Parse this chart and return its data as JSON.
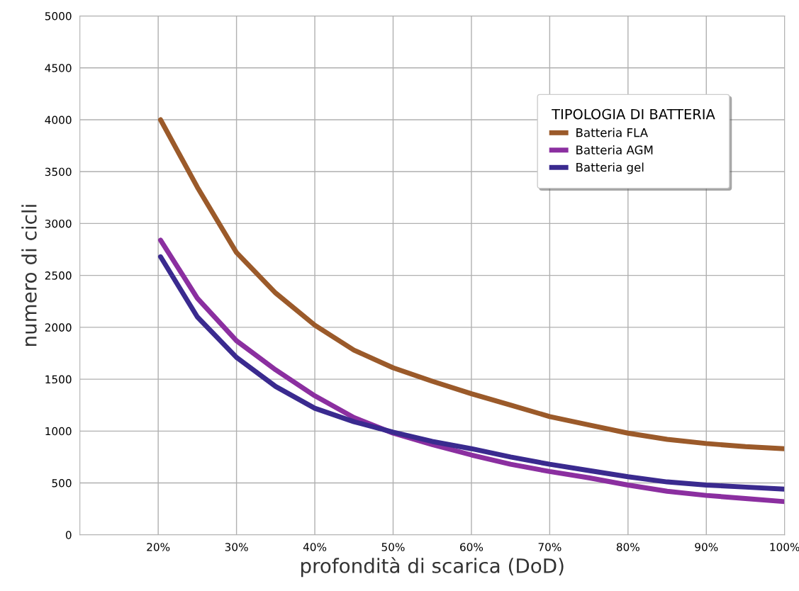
{
  "chart_data": {
    "type": "line",
    "xlabel": "profondità di scarica (DoD)",
    "ylabel": "numero di cicli",
    "legend_title": "TIPOLOGIA DI BATTERIA",
    "legend": "top right",
    "grid": true,
    "line_style": "solid",
    "marker": "none",
    "xlim": [
      10,
      100
    ],
    "ylim": [
      0,
      5000
    ],
    "xticks": [
      {
        "value": 20,
        "label": "20%"
      },
      {
        "value": 30,
        "label": "30%"
      },
      {
        "value": 40,
        "label": "40%"
      },
      {
        "value": 50,
        "label": "50%"
      },
      {
        "value": 60,
        "label": "60%"
      },
      {
        "value": 70,
        "label": "70%"
      },
      {
        "value": 80,
        "label": "80%"
      },
      {
        "value": 90,
        "label": "90%"
      },
      {
        "value": 100,
        "label": "100%"
      }
    ],
    "yticks": [
      0,
      500,
      1000,
      1500,
      2000,
      2500,
      3000,
      3500,
      4000,
      4500,
      5000
    ],
    "x": [
      20.3,
      25,
      30,
      35,
      40,
      45,
      50,
      55,
      60,
      65,
      70,
      75,
      80,
      85,
      90,
      95,
      100
    ],
    "series": [
      {
        "name": "Batteria FLA",
        "color": "#9b5a2a",
        "values": [
          4000,
          3350,
          2720,
          2330,
          2020,
          1780,
          1610,
          1480,
          1360,
          1250,
          1140,
          1060,
          980,
          920,
          880,
          850,
          830
        ]
      },
      {
        "name": "Batteria AGM",
        "color": "#8b2fa0",
        "values": [
          2840,
          2280,
          1870,
          1590,
          1340,
          1130,
          980,
          870,
          770,
          680,
          610,
          550,
          480,
          420,
          380,
          350,
          320
        ]
      },
      {
        "name": "Batteria gel",
        "color": "#3a2a8f",
        "values": [
          2680,
          2100,
          1710,
          1430,
          1220,
          1090,
          990,
          900,
          830,
          750,
          680,
          620,
          560,
          510,
          480,
          460,
          440
        ]
      }
    ]
  }
}
